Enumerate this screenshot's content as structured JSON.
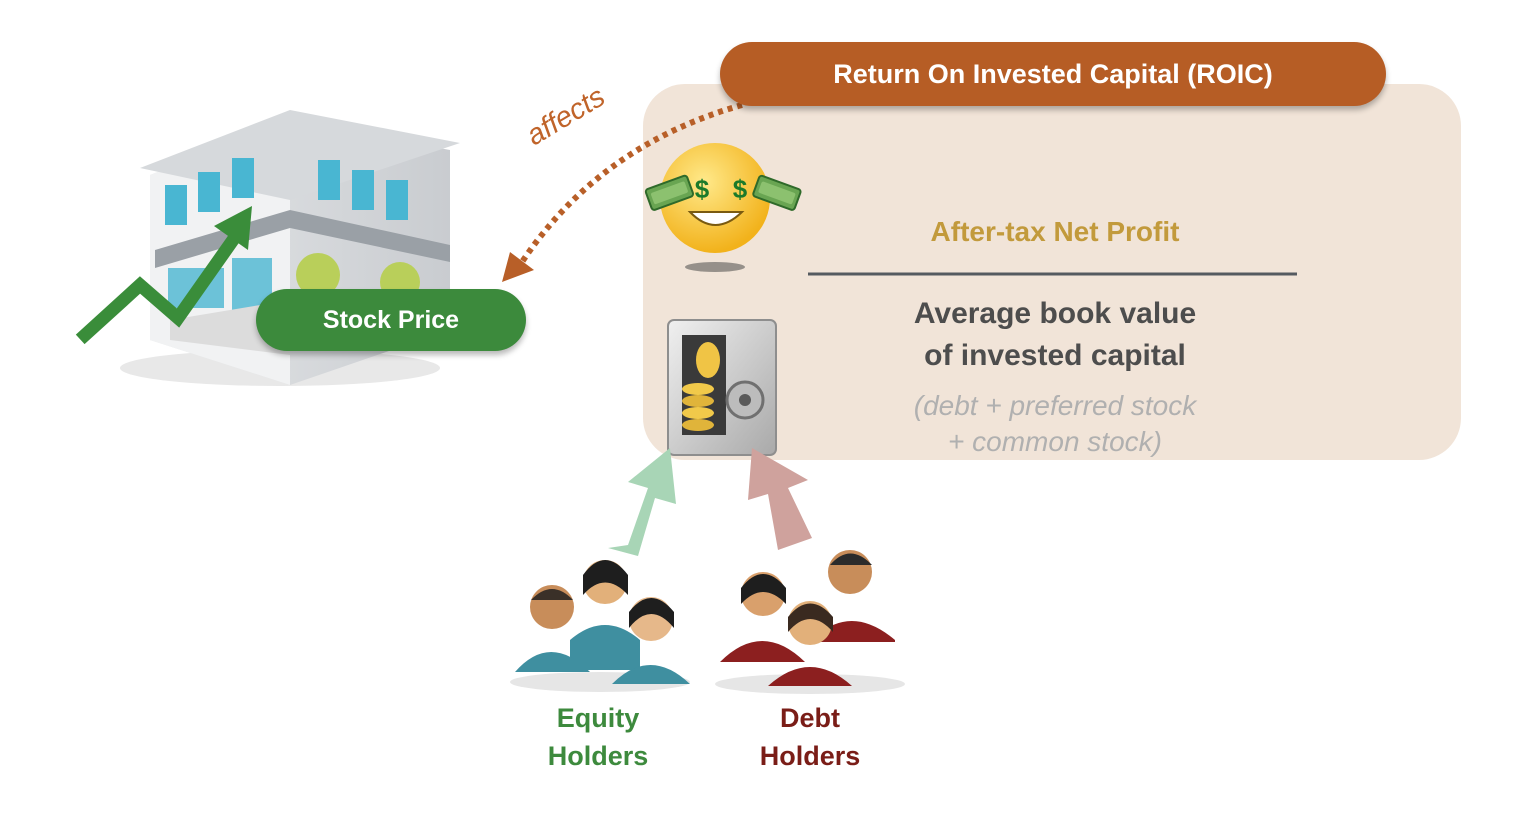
{
  "roic": {
    "title": "Return On Invested Capital (ROIC)"
  },
  "stock": {
    "label": "Stock Price"
  },
  "connector": {
    "label": "affects"
  },
  "formula": {
    "numerator": "After-tax Net Profit",
    "denominator_line1": "Average book value",
    "denominator_line2": "of invested capital",
    "note_line1": "(debt + preferred stock",
    "note_line2": "+ common stock)"
  },
  "equity": {
    "line1": "Equity",
    "line2": "Holders"
  },
  "debt": {
    "line1": "Debt",
    "line2": "Holders"
  },
  "icons": [
    "building-icon",
    "rising-trend-arrow-icon",
    "money-eyes-emoji-icon",
    "safe-with-coins-icon",
    "equity-holders-group-icon",
    "debt-holders-group-icon"
  ],
  "colors": {
    "roic_pill": "#b65d25",
    "panel": "#f1e4d8",
    "stock_pill": "#3c8a3c",
    "numerator_text": "#c29a3c",
    "equity": "#3d8a3d",
    "debt": "#7a1d17",
    "equity_arrow": "#a8d5b6",
    "debt_arrow": "#cfa29d"
  }
}
